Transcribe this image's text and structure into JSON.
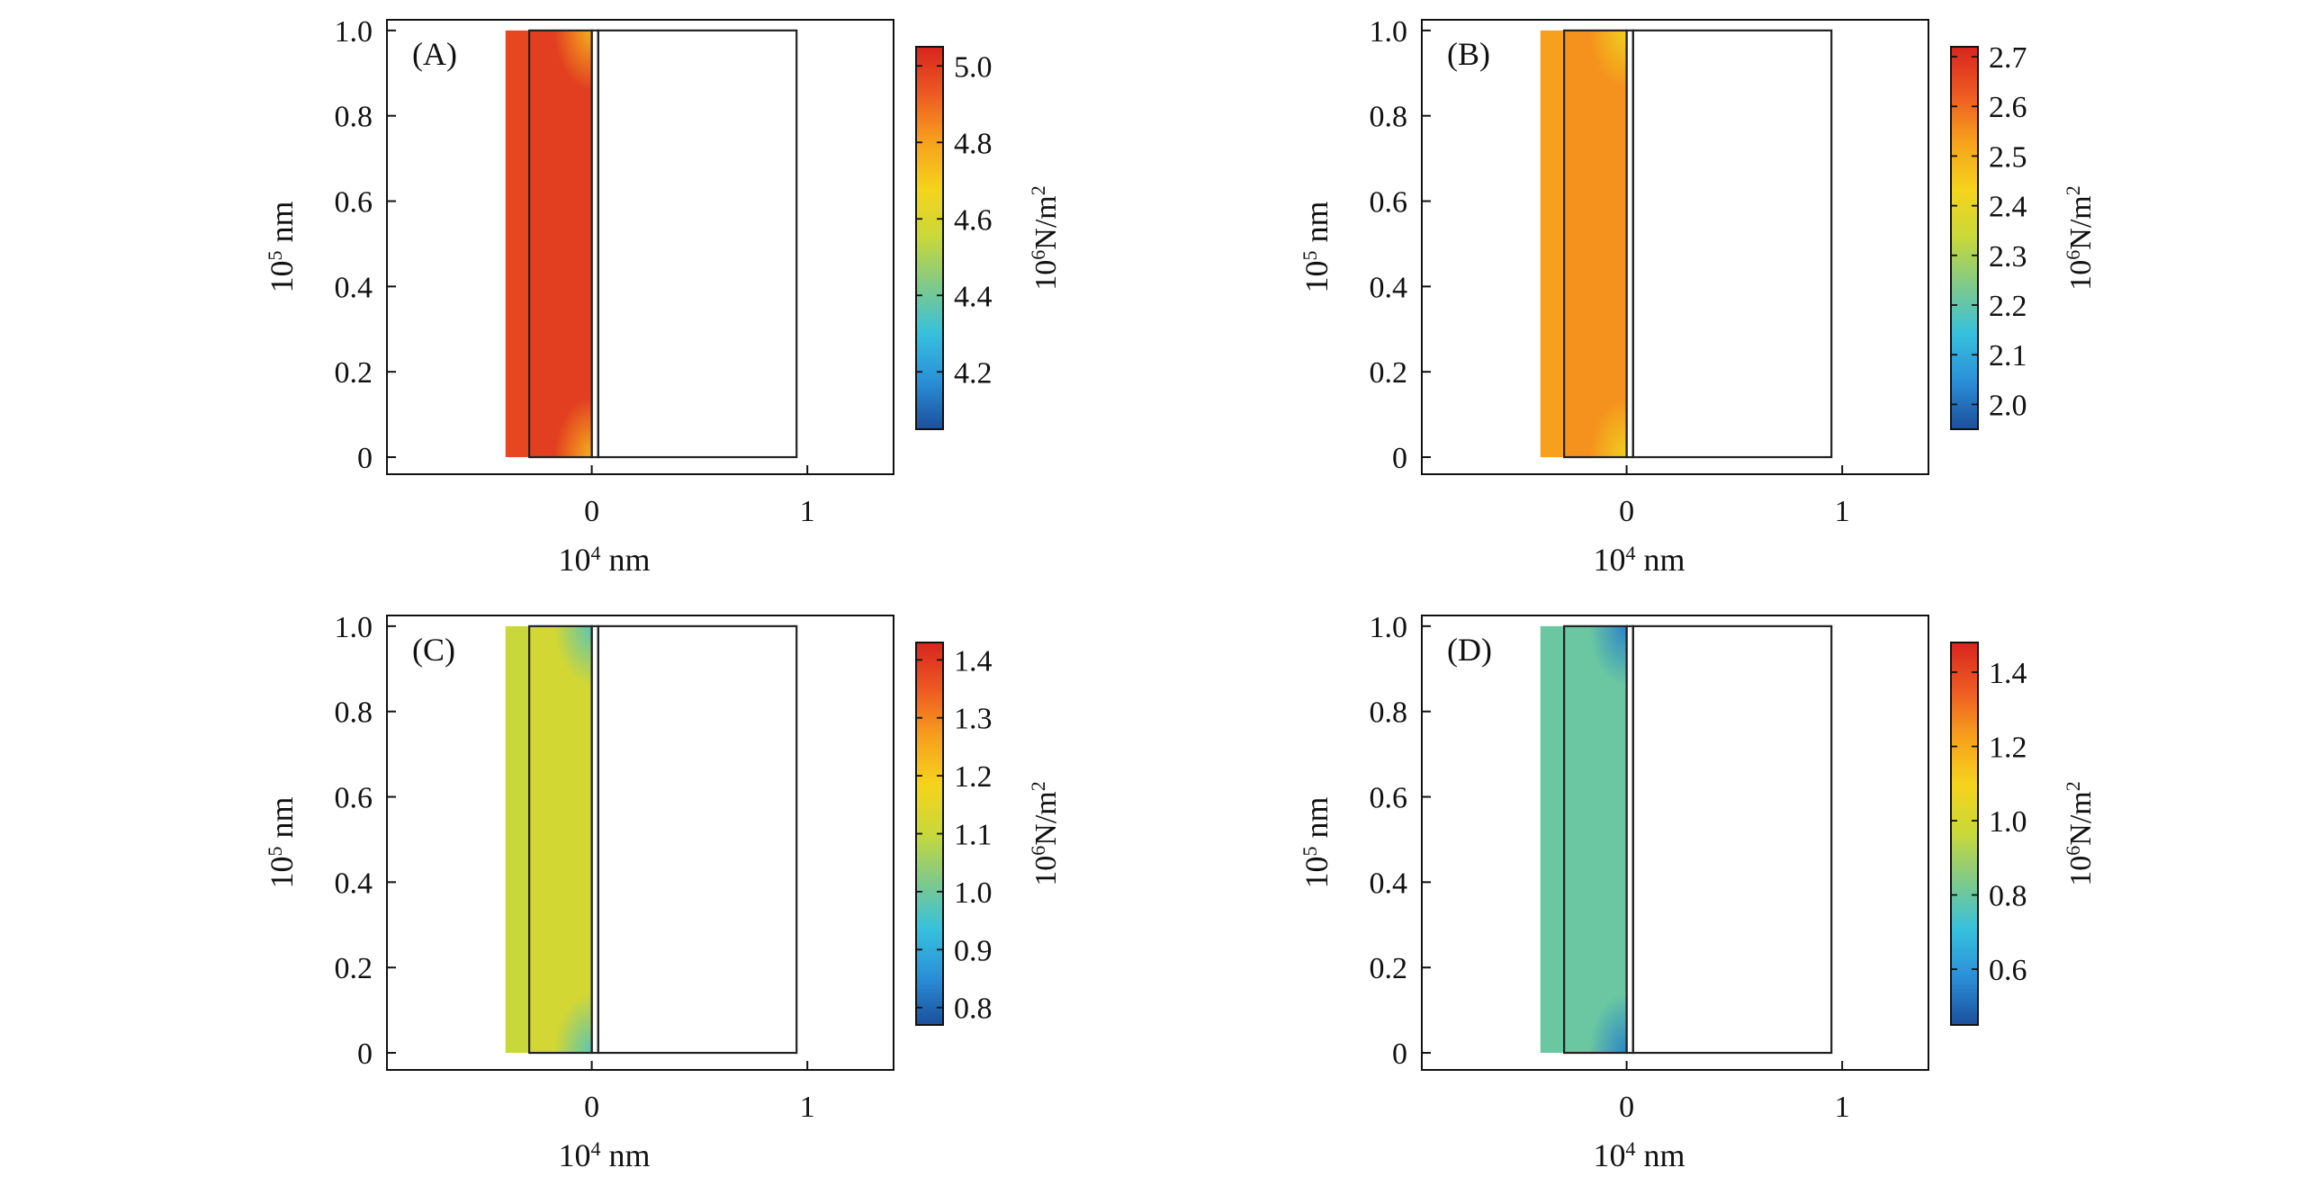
{
  "chart_data": [
    {
      "type": "heatmap",
      "panel_label": "(A)",
      "xlabel": {
        "base": "10",
        "exp": "4",
        "unit": "nm"
      },
      "ylabel": {
        "base": "10",
        "exp": "5",
        "unit": "nm"
      },
      "xlim": [
        -0.95,
        1.4
      ],
      "ylim": [
        -0.04,
        1.025
      ],
      "xticks": [
        {
          "value": 0,
          "label": "0"
        },
        {
          "value": 1,
          "label": "1"
        }
      ],
      "yticks": [
        {
          "value": 0,
          "label": "0"
        },
        {
          "value": 0.2,
          "label": "0.2"
        },
        {
          "value": 0.4,
          "label": "0.4"
        },
        {
          "value": 0.6,
          "label": "0.6"
        },
        {
          "value": 0.8,
          "label": "0.8"
        },
        {
          "value": 1.0,
          "label": "1.0"
        }
      ],
      "regions": [
        {
          "name": "outer-layer",
          "x": [
            -0.4,
            -0.29
          ],
          "y": [
            0,
            1
          ],
          "value": 4.97
        },
        {
          "name": "inner-layer",
          "x": [
            -0.29,
            0.0
          ],
          "y": [
            0,
            1
          ],
          "value": 4.99
        },
        {
          "name": "gap",
          "x": [
            0.0,
            0.03
          ],
          "y": [
            0,
            1
          ],
          "value": null
        },
        {
          "name": "empty-domain",
          "x": [
            0.03,
            0.95
          ],
          "y": [
            0,
            1
          ],
          "value": null
        }
      ],
      "corner_value": 4.75,
      "colorbar": {
        "label_base": "10",
        "label_exp": "6",
        "label_unit": "N/m",
        "label_exp2": "2",
        "range": [
          4.05,
          5.05
        ],
        "ticks": [
          {
            "value": 4.2,
            "label": "4.2"
          },
          {
            "value": 4.4,
            "label": "4.4"
          },
          {
            "value": 4.6,
            "label": "4.6"
          },
          {
            "value": 4.8,
            "label": "4.8"
          },
          {
            "value": 5.0,
            "label": "5.0"
          }
        ]
      }
    },
    {
      "type": "heatmap",
      "panel_label": "(B)",
      "xlabel": {
        "base": "10",
        "exp": "4",
        "unit": "nm"
      },
      "ylabel": {
        "base": "10",
        "exp": "5",
        "unit": "nm"
      },
      "xlim": [
        -0.95,
        1.4
      ],
      "ylim": [
        -0.04,
        1.025
      ],
      "xticks": [
        {
          "value": 0,
          "label": "0"
        },
        {
          "value": 1,
          "label": "1"
        }
      ],
      "yticks": [
        {
          "value": 0,
          "label": "0"
        },
        {
          "value": 0.2,
          "label": "0.2"
        },
        {
          "value": 0.4,
          "label": "0.4"
        },
        {
          "value": 0.6,
          "label": "0.6"
        },
        {
          "value": 0.8,
          "label": "0.8"
        },
        {
          "value": 1.0,
          "label": "1.0"
        }
      ],
      "regions": [
        {
          "name": "outer-layer",
          "x": [
            -0.4,
            -0.29
          ],
          "y": [
            0,
            1
          ],
          "value": 2.53
        },
        {
          "name": "inner-layer",
          "x": [
            -0.29,
            0.0
          ],
          "y": [
            0,
            1
          ],
          "value": 2.55
        },
        {
          "name": "gap",
          "x": [
            0.0,
            0.03
          ],
          "y": [
            0,
            1
          ],
          "value": null
        },
        {
          "name": "empty-domain",
          "x": [
            0.03,
            0.95
          ],
          "y": [
            0,
            1
          ],
          "value": null
        }
      ],
      "corner_value": 2.42,
      "colorbar": {
        "label_base": "10",
        "label_exp": "6",
        "label_unit": "N/m",
        "label_exp2": "2",
        "range": [
          1.95,
          2.72
        ],
        "ticks": [
          {
            "value": 2.0,
            "label": "2.0"
          },
          {
            "value": 2.1,
            "label": "2.1"
          },
          {
            "value": 2.2,
            "label": "2.2"
          },
          {
            "value": 2.3,
            "label": "2.3"
          },
          {
            "value": 2.4,
            "label": "2.4"
          },
          {
            "value": 2.5,
            "label": "2.5"
          },
          {
            "value": 2.6,
            "label": "2.6"
          },
          {
            "value": 2.7,
            "label": "2.7"
          }
        ]
      }
    },
    {
      "type": "heatmap",
      "panel_label": "(C)",
      "xlabel": {
        "base": "10",
        "exp": "4",
        "unit": "nm"
      },
      "ylabel": {
        "base": "10",
        "exp": "5",
        "unit": "nm"
      },
      "xlim": [
        -0.95,
        1.4
      ],
      "ylim": [
        -0.04,
        1.025
      ],
      "xticks": [
        {
          "value": 0,
          "label": "0"
        },
        {
          "value": 1,
          "label": "1"
        }
      ],
      "yticks": [
        {
          "value": 0,
          "label": "0"
        },
        {
          "value": 0.2,
          "label": "0.2"
        },
        {
          "value": 0.4,
          "label": "0.4"
        },
        {
          "value": 0.6,
          "label": "0.6"
        },
        {
          "value": 0.8,
          "label": "0.8"
        },
        {
          "value": 1.0,
          "label": "1.0"
        }
      ],
      "regions": [
        {
          "name": "outer-layer",
          "x": [
            -0.4,
            -0.29
          ],
          "y": [
            0,
            1
          ],
          "value": 1.1
        },
        {
          "name": "inner-layer",
          "x": [
            -0.29,
            0.0
          ],
          "y": [
            0,
            1
          ],
          "value": 1.12
        },
        {
          "name": "gap",
          "x": [
            0.0,
            0.03
          ],
          "y": [
            0,
            1
          ],
          "value": null
        },
        {
          "name": "empty-domain",
          "x": [
            0.03,
            0.95
          ],
          "y": [
            0,
            1
          ],
          "value": null
        }
      ],
      "corner_value": 0.97,
      "colorbar": {
        "label_base": "10",
        "label_exp": "6",
        "label_unit": "N/m",
        "label_exp2": "2",
        "range": [
          0.77,
          1.43
        ],
        "ticks": [
          {
            "value": 0.8,
            "label": "0.8"
          },
          {
            "value": 0.9,
            "label": "0.9"
          },
          {
            "value": 1.0,
            "label": "1.0"
          },
          {
            "value": 1.1,
            "label": "1.1"
          },
          {
            "value": 1.2,
            "label": "1.2"
          },
          {
            "value": 1.3,
            "label": "1.3"
          },
          {
            "value": 1.4,
            "label": "1.4"
          }
        ]
      }
    },
    {
      "type": "heatmap",
      "panel_label": "(D)",
      "xlabel": {
        "base": "10",
        "exp": "4",
        "unit": "nm"
      },
      "ylabel": {
        "base": "10",
        "exp": "5",
        "unit": "nm"
      },
      "xlim": [
        -0.95,
        1.4
      ],
      "ylim": [
        -0.04,
        1.025
      ],
      "xticks": [
        {
          "value": 0,
          "label": "0"
        },
        {
          "value": 1,
          "label": "1"
        }
      ],
      "yticks": [
        {
          "value": 0,
          "label": "0"
        },
        {
          "value": 0.2,
          "label": "0.2"
        },
        {
          "value": 0.4,
          "label": "0.4"
        },
        {
          "value": 0.6,
          "label": "0.6"
        },
        {
          "value": 0.8,
          "label": "0.8"
        },
        {
          "value": 1.0,
          "label": "1.0"
        }
      ],
      "regions": [
        {
          "name": "outer-layer",
          "x": [
            -0.4,
            -0.29
          ],
          "y": [
            0,
            1
          ],
          "value": 0.8
        },
        {
          "name": "inner-layer",
          "x": [
            -0.29,
            0.0
          ],
          "y": [
            0,
            1
          ],
          "value": 0.8
        },
        {
          "name": "gap",
          "x": [
            0.0,
            0.03
          ],
          "y": [
            0,
            1
          ],
          "value": null
        },
        {
          "name": "empty-domain",
          "x": [
            0.03,
            0.95
          ],
          "y": [
            0,
            1
          ],
          "value": null
        }
      ],
      "corner_value": 0.55,
      "colorbar": {
        "label_base": "10",
        "label_exp": "6",
        "label_unit": "N/m",
        "label_exp2": "2",
        "range": [
          0.45,
          1.48
        ],
        "ticks": [
          {
            "value": 0.6,
            "label": "0.6"
          },
          {
            "value": 0.8,
            "label": "0.8"
          },
          {
            "value": 1.0,
            "label": "1.0"
          },
          {
            "value": 1.2,
            "label": "1.2"
          },
          {
            "value": 1.4,
            "label": "1.4"
          }
        ]
      }
    }
  ],
  "colormap": [
    "#1c4f9c",
    "#2a8fd8",
    "#36c1dd",
    "#7fc98a",
    "#c8d83a",
    "#f5d41c",
    "#f7a21c",
    "#ee5a22",
    "#d7261e"
  ]
}
